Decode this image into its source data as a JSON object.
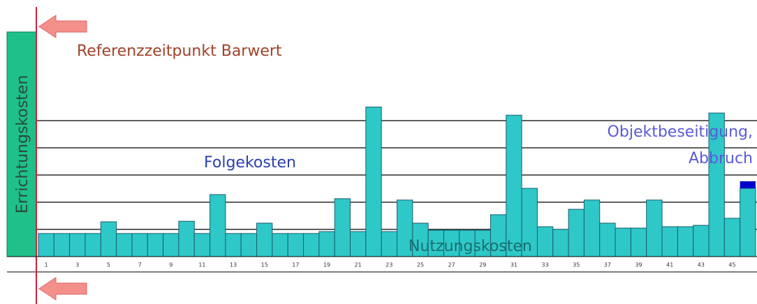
{
  "chart_data": {
    "type": "bar",
    "categories": [
      "1",
      null,
      "3",
      null,
      "5",
      null,
      "7",
      null,
      "9",
      null,
      "11",
      null,
      "13",
      null,
      "15",
      null,
      "17",
      null,
      "19",
      null,
      "21",
      null,
      "23",
      null,
      "25",
      null,
      "27",
      null,
      "29",
      null,
      "31",
      null,
      "33",
      null,
      "35",
      null,
      "37",
      null,
      "39",
      null,
      "41",
      null,
      "43",
      null,
      "45",
      null
    ],
    "values": [
      0.85,
      0.85,
      0.85,
      0.85,
      1.28,
      0.85,
      0.85,
      0.85,
      0.85,
      1.3,
      0.85,
      2.28,
      0.85,
      0.85,
      1.23,
      0.85,
      0.85,
      0.85,
      0.92,
      2.13,
      0.92,
      5.5,
      0.92,
      2.08,
      1.23,
      0.97,
      0.97,
      0.97,
      0.97,
      1.54,
      5.2,
      2.51,
      1.1,
      1.0,
      1.74,
      2.08,
      1.23,
      1.05,
      1.05,
      2.08,
      1.1,
      1.1,
      1.15,
      5.28,
      1.41,
      2.51
    ],
    "color": "#2ec8c8",
    "cap": {
      "value": 0.26,
      "color": "#0000cc"
    },
    "initial": {
      "label": "Errichtungskosten",
      "value": 8.26,
      "color": "#1fc08a"
    },
    "ylim": [
      0,
      8.4
    ],
    "grid_lines": [
      1,
      2,
      3,
      4,
      5
    ],
    "annotations": {
      "reference": "Referenzzeitpunkt Barwert",
      "follow": "Folgekosten",
      "demolition_1": "Objektbeseitigung,",
      "demolition_2": "Abbruch",
      "usage": "Nutzungskosten"
    }
  }
}
